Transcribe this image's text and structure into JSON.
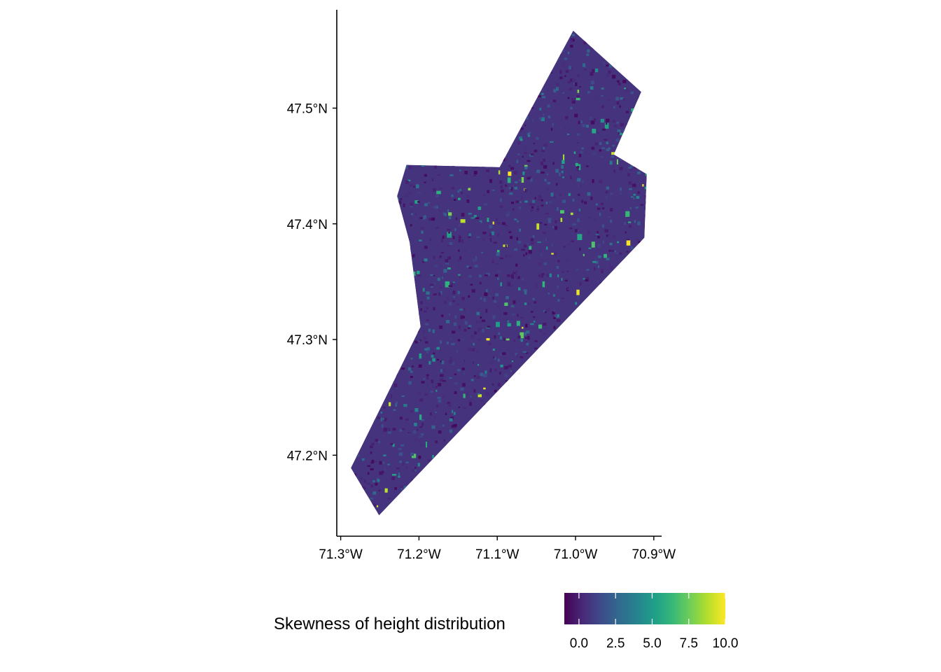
{
  "map": {
    "legend": {
      "title": "Skewness of height distribution",
      "palette": [
        "#440154",
        "#482878",
        "#3E4A89",
        "#31688E",
        "#26828E",
        "#1F9E89",
        "#35B779",
        "#6DCD59",
        "#B4DE2C",
        "#FDE725"
      ],
      "range": [
        -1,
        10
      ],
      "ticks": [
        {
          "value": 0,
          "label": "0.0"
        },
        {
          "value": 2.5,
          "label": "2.5"
        },
        {
          "value": 5,
          "label": "5.0"
        },
        {
          "value": 7.5,
          "label": "7.5"
        },
        {
          "value": 10,
          "label": "10.0"
        }
      ]
    },
    "x_axis": {
      "range": [
        -71.305,
        -70.89
      ],
      "ticks": [
        {
          "value": -71.3,
          "label": "71.3°W"
        },
        {
          "value": -71.2,
          "label": "71.2°W"
        },
        {
          "value": -71.1,
          "label": "71.1°W"
        },
        {
          "value": -71.0,
          "label": "71.0°W"
        },
        {
          "value": -70.9,
          "label": "70.9°W"
        }
      ]
    },
    "y_axis": {
      "range": [
        47.13,
        47.585
      ],
      "ticks": [
        {
          "value": 47.2,
          "label": "47.2°N"
        },
        {
          "value": 47.3,
          "label": "47.3°N"
        },
        {
          "value": 47.4,
          "label": "47.4°N"
        },
        {
          "value": 47.5,
          "label": "47.5°N"
        }
      ]
    },
    "region_outline": [
      [
        -71.287,
        47.189
      ],
      [
        -71.251,
        47.148
      ],
      [
        -70.912,
        47.388
      ],
      [
        -70.909,
        47.443
      ],
      [
        -70.951,
        47.46
      ],
      [
        -70.916,
        47.514
      ],
      [
        -71.003,
        47.567
      ],
      [
        -71.097,
        47.449
      ],
      [
        -71.216,
        47.451
      ],
      [
        -71.228,
        47.424
      ],
      [
        -71.212,
        47.384
      ],
      [
        -71.198,
        47.311
      ]
    ],
    "base_value": 0.6
  }
}
